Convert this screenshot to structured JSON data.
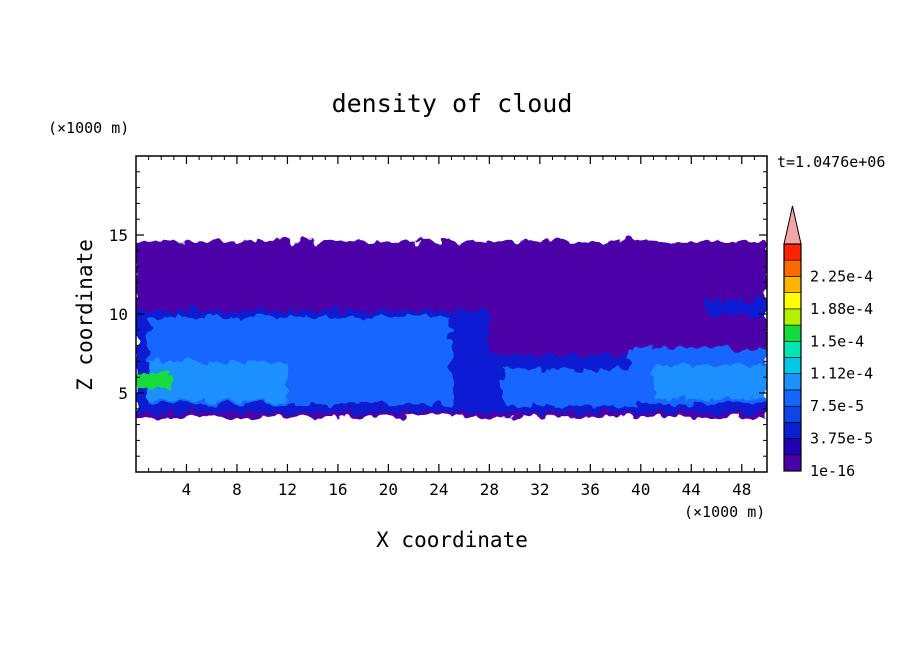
{
  "chart_data": {
    "type": "heatmap",
    "title": "density of cloud",
    "xlabel": "X coordinate",
    "ylabel": "Z coordinate",
    "x_unit": "(×1000 m)",
    "y_unit": "(×1000 m)",
    "time_label": "t=1.0476e+06",
    "xlim": [
      0,
      50
    ],
    "ylim": [
      0,
      20
    ],
    "xticks": [
      "4",
      "8",
      "12",
      "16",
      "20",
      "24",
      "28",
      "32",
      "36",
      "40",
      "44",
      "48"
    ],
    "yticks": [
      "5",
      "10",
      "15"
    ],
    "colorbar": {
      "labels": [
        "1e-16",
        "3.75e-5",
        "7.5e-5",
        "1.12e-4",
        "1.5e-4",
        "1.88e-4",
        "2.25e-4"
      ],
      "levels": [
        1e-16,
        1.875e-05,
        3.75e-05,
        5.625e-05,
        7.5e-05,
        9.375e-05,
        0.0001125,
        0.00013125,
        0.00015,
        0.00016875,
        0.0001875,
        0.00020625,
        0.000225,
        0.00024375
      ],
      "colors": [
        "#4b00a8",
        "#2200b4",
        "#0a1ed2",
        "#0c46e6",
        "#1466ff",
        "#1e90ff",
        "#00c8e6",
        "#00e6b4",
        "#14dc3c",
        "#b4f000",
        "#ffff00",
        "#ffb400",
        "#ff6a00",
        "#ff2200"
      ],
      "extend_color": "#f4a6a6"
    },
    "regions": [
      {
        "x": [
          0,
          50
        ],
        "z": [
          3.5,
          14.6
        ],
        "value": 1e-16
      },
      {
        "x": [
          0,
          50
        ],
        "z": [
          3.8,
          7.4
        ],
        "value": 3.75e-05
      },
      {
        "x": [
          0,
          28
        ],
        "z": [
          7.4,
          10.2
        ],
        "value": 3.75e-05
      },
      {
        "x": [
          45,
          50
        ],
        "z": [
          9.9,
          10.9
        ],
        "value": 3.75e-05
      },
      {
        "x": [
          1,
          25
        ],
        "z": [
          4.3,
          9.8
        ],
        "value": 7.5e-05
      },
      {
        "x": [
          29,
          40
        ],
        "z": [
          4.2,
          6.5
        ],
        "value": 7.5e-05
      },
      {
        "x": [
          39,
          50
        ],
        "z": [
          4.3,
          7.8
        ],
        "value": 7.5e-05
      },
      {
        "x": [
          1,
          12
        ],
        "z": [
          4.5,
          7.0
        ],
        "value": 0.000112
      },
      {
        "x": [
          41,
          50
        ],
        "z": [
          4.6,
          6.8
        ],
        "value": 0.000112
      },
      {
        "x": [
          0,
          3
        ],
        "z": [
          5.3,
          6.3
        ],
        "value": 0.00015
      }
    ]
  }
}
